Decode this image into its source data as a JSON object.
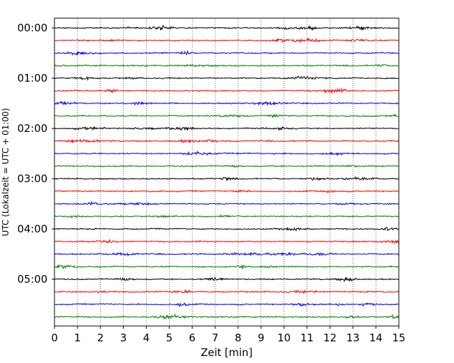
{
  "chart_data": {
    "type": "line",
    "chart_kind": "helicorder",
    "title": "",
    "xlabel": "Zeit  [min]",
    "ylabel": "UTC (Lokalzeit = UTC + 01:00)",
    "xlim": [
      0,
      15
    ],
    "x_ticks": [
      "0",
      "1",
      "2",
      "3",
      "4",
      "5",
      "6",
      "7",
      "8",
      "9",
      "10",
      "11",
      "12",
      "13",
      "14",
      "15"
    ],
    "y_tick_labels": [
      "00:00",
      "01:00",
      "02:00",
      "03:00",
      "04:00",
      "05:00"
    ],
    "traces_per_hour": 4,
    "trace_count": 24,
    "trace_colors": [
      "#000000",
      "#ff0000",
      "#0000ff",
      "#008000"
    ],
    "vertical_grid": "dotted",
    "horizontal_grid": false,
    "legend": "none"
  }
}
